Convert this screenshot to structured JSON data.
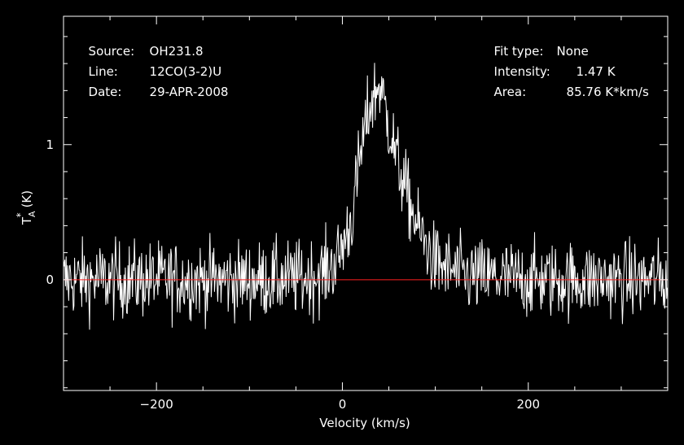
{
  "header": {
    "source_label": "Source:",
    "source_value": "OH231.8",
    "line_label": "Line:",
    "line_value": "12CO(3-2)U",
    "date_label": "Date:",
    "date_value": "29-APR-2008",
    "fit_label": "Fit type:",
    "fit_value": "None",
    "intensity_label": "Intensity:",
    "intensity_value": "1.47 K",
    "area_label": "Area:",
    "area_value": "85.76 K*km/s"
  },
  "colors": {
    "background": "#000000",
    "foreground": "#ffffff",
    "baseline": "#ff2020"
  },
  "chart_data": {
    "type": "line",
    "title": "",
    "xlabel": "Velocity (km/s)",
    "ylabel": "T_A* (K)",
    "xlim": [
      -300,
      350
    ],
    "ylim": [
      -0.82,
      1.95
    ],
    "x_ticks": [
      -200,
      0,
      200
    ],
    "y_ticks": [
      0,
      1
    ],
    "baseline_y": 0,
    "grid": false,
    "profile": {
      "x": [
        -300,
        -80,
        -40,
        -20,
        -5,
        10,
        20,
        30,
        40,
        50,
        60,
        80,
        100,
        130,
        200,
        350
      ],
      "y": [
        0,
        0,
        0.01,
        0.05,
        0.15,
        0.45,
        0.95,
        1.3,
        1.45,
        1.15,
        0.85,
        0.4,
        0.12,
        0.03,
        0,
        0
      ]
    },
    "noise_rms_K": 0.14,
    "channel_width_kmps": 0.7
  }
}
